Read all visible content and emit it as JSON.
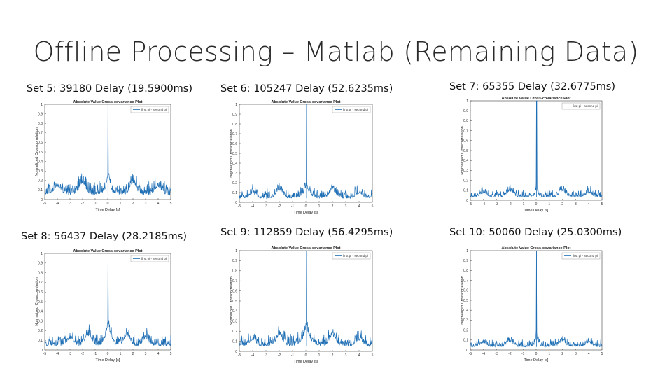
{
  "slide": {
    "title": "Offline Processing – Matlab (Remaining Data)"
  },
  "chart_data": [
    {
      "type": "line",
      "caption": "Set 5: 39180 Delay (19.5900ms)",
      "title": "Absolute Value Cross-covariance Plot",
      "xlabel": "Time Delay [s]",
      "ylabel": "Normalized Crosscorrelation",
      "legend": "first pi - second pi",
      "legend_position": "top-right",
      "xlim": [
        -5,
        5
      ],
      "ylim": [
        0,
        1
      ],
      "xticks": [
        "-5",
        "-4",
        "-3",
        "-2",
        "-1",
        "0",
        "1",
        "2",
        "3",
        "4",
        "5"
      ],
      "yticks": [
        "0",
        "0.1",
        "0.2",
        "0.3",
        "0.4",
        "0.5",
        "0.6",
        "0.7",
        "0.8",
        "0.9",
        "1"
      ],
      "series": [
        {
          "name": "first pi - second pi",
          "color": "#1f6fb5",
          "peak_x": 0.0196,
          "peak_y": 1,
          "noise_floor": 0.05,
          "noise_amp": 0.07,
          "side_hump": 0.22,
          "hump_width": 0.18,
          "sidelobes": [
            {
              "x": -2.0,
              "y": 0.12
            },
            {
              "x": 2.0,
              "y": 0.12
            },
            {
              "x": -4.0,
              "y": 0.08
            },
            {
              "x": 4.0,
              "y": 0.08
            }
          ],
          "seed": 5
        }
      ]
    },
    {
      "type": "line",
      "caption": "Set 6: 105247 Delay (52.6235ms)",
      "title": "Absolute Value Cross-covariance Plot",
      "xlabel": "Time Delay [s]",
      "ylabel": "Normalized Crosscorrelation",
      "legend": "first pi - second pi",
      "legend_position": "top-right",
      "xlim": [
        -5,
        5
      ],
      "ylim": [
        0,
        1
      ],
      "xticks": [
        "-5",
        "-4",
        "-3",
        "-2",
        "-1",
        "0",
        "1",
        "2",
        "3",
        "4",
        "5"
      ],
      "yticks": [
        "0",
        "0.1",
        "0.2",
        "0.3",
        "0.4",
        "0.5",
        "0.6",
        "0.7",
        "0.8",
        "0.9",
        "1"
      ],
      "series": [
        {
          "name": "first pi - second pi",
          "color": "#1f6fb5",
          "peak_x": 0.0526,
          "peak_y": 1,
          "noise_floor": 0.04,
          "noise_amp": 0.05,
          "side_hump": 0.14,
          "hump_width": 0.25,
          "sidelobes": [
            {
              "x": -2.0,
              "y": 0.08
            },
            {
              "x": 2.0,
              "y": 0.08
            },
            {
              "x": -4.0,
              "y": 0.05
            },
            {
              "x": 4.0,
              "y": 0.05
            }
          ],
          "seed": 6
        }
      ]
    },
    {
      "type": "line",
      "caption": "Set 7: 65355 Delay (32.6775ms)",
      "title": "Absolute Value Cross-covariance Plot",
      "xlabel": "Time Delay [s]",
      "ylabel": "Normalized Crosscorrelation",
      "legend": "first pi - second pi",
      "legend_position": "top-right",
      "xlim": [
        -5,
        5
      ],
      "ylim": [
        0,
        1
      ],
      "xticks": [
        "-5",
        "-4",
        "-3",
        "-2",
        "-1",
        "0",
        "1",
        "2",
        "3",
        "4",
        "5"
      ],
      "yticks": [
        "0",
        "0.1",
        "0.2",
        "0.3",
        "0.4",
        "0.5",
        "0.6",
        "0.7",
        "0.8",
        "0.9",
        "1"
      ],
      "series": [
        {
          "name": "first pi - second pi",
          "color": "#1f6fb5",
          "peak_x": 0.0327,
          "peak_y": 1,
          "noise_floor": 0.03,
          "noise_amp": 0.04,
          "side_hump": 0.1,
          "hump_width": 0.12,
          "sidelobes": [
            {
              "x": -2.0,
              "y": 0.06
            },
            {
              "x": 2.0,
              "y": 0.06
            },
            {
              "x": -4.0,
              "y": 0.04
            },
            {
              "x": 4.0,
              "y": 0.04
            }
          ],
          "seed": 7
        }
      ]
    },
    {
      "type": "line",
      "caption": "Set 8: 56437 Delay (28.2185ms)",
      "title": "Absolute Value Cross-covariance Plot",
      "xlabel": "Time Delay [s]",
      "ylabel": "Normalized Crosscorrelation",
      "legend": "first pi - second pi",
      "legend_position": "top-right",
      "xlim": [
        -5,
        5
      ],
      "ylim": [
        0,
        1
      ],
      "xticks": [
        "-5",
        "-4",
        "-3",
        "-2",
        "-1",
        "0",
        "1",
        "2",
        "3",
        "4",
        "5"
      ],
      "yticks": [
        "0",
        "0.1",
        "0.2",
        "0.3",
        "0.4",
        "0.5",
        "0.6",
        "0.7",
        "0.8",
        "0.9",
        "1"
      ],
      "series": [
        {
          "name": "first pi - second pi",
          "color": "#1f6fb5",
          "peak_x": 0.0282,
          "peak_y": 1,
          "noise_floor": 0.04,
          "noise_amp": 0.06,
          "side_hump": 0.27,
          "hump_width": 0.22,
          "sidelobes": [
            {
              "x": -1.5,
              "y": 0.1
            },
            {
              "x": 1.5,
              "y": 0.1
            },
            {
              "x": -3.0,
              "y": 0.07
            },
            {
              "x": 3.0,
              "y": 0.07
            }
          ],
          "seed": 8
        }
      ]
    },
    {
      "type": "line",
      "caption": "Set 9: 112859 Delay (56.4295ms)",
      "title": "Absolute Value Cross-covariance Plot",
      "xlabel": "Time Delay [s]",
      "ylabel": "Normalized Crosscorrelation",
      "legend": "first pi - second pi",
      "legend_position": "top-right",
      "xlim": [
        -5,
        5
      ],
      "ylim": [
        0,
        1
      ],
      "xticks": [
        "-5",
        "-4",
        "-3",
        "-2",
        "-1",
        "0",
        "1",
        "2",
        "3",
        "4",
        "5"
      ],
      "yticks": [
        "0",
        "0.1",
        "0.2",
        "0.3",
        "0.4",
        "0.5",
        "0.6",
        "0.7",
        "0.8",
        "0.9",
        "1"
      ],
      "series": [
        {
          "name": "first pi - second pi",
          "color": "#1f6fb5",
          "peak_x": 0.0564,
          "peak_y": 1,
          "noise_floor": 0.05,
          "noise_amp": 0.06,
          "side_hump": 0.2,
          "hump_width": 0.28,
          "sidelobes": [
            {
              "x": -2.0,
              "y": 0.1
            },
            {
              "x": 2.0,
              "y": 0.1
            },
            {
              "x": -4.0,
              "y": 0.06
            },
            {
              "x": 4.0,
              "y": 0.06
            }
          ],
          "seed": 9
        }
      ]
    },
    {
      "type": "line",
      "caption": "Set 10: 50060 Delay (25.0300ms)",
      "title": "Absolute Value Cross-covariance Plot",
      "xlabel": "Time Delay [s]",
      "ylabel": "Normalized Crosscorrelation",
      "legend": "first pi - second pi",
      "legend_position": "top-right",
      "xlim": [
        -5,
        5
      ],
      "ylim": [
        0,
        1
      ],
      "xticks": [
        "-5",
        "-4",
        "-3",
        "-2",
        "-1",
        "0",
        "1",
        "2",
        "3",
        "4",
        "5"
      ],
      "yticks": [
        "0",
        "0.1",
        "0.2",
        "0.3",
        "0.4",
        "0.5",
        "0.6",
        "0.7",
        "0.8",
        "0.9",
        "1"
      ],
      "series": [
        {
          "name": "first pi - second pi",
          "color": "#1f6fb5",
          "peak_x": 0.025,
          "peak_y": 1,
          "noise_floor": 0.03,
          "noise_amp": 0.04,
          "side_hump": 0.12,
          "hump_width": 0.12,
          "sidelobes": [
            {
              "x": -2.0,
              "y": 0.05
            },
            {
              "x": 2.0,
              "y": 0.05
            },
            {
              "x": -4.0,
              "y": 0.04
            },
            {
              "x": 4.0,
              "y": 0.04
            }
          ],
          "seed": 10
        }
      ]
    }
  ]
}
